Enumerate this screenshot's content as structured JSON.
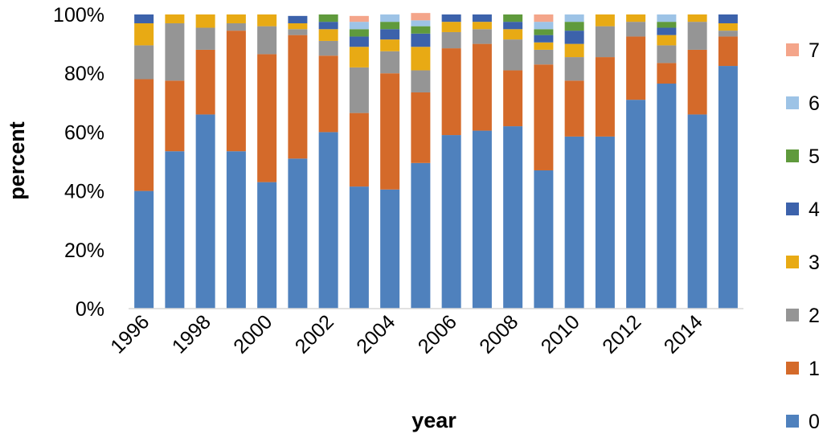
{
  "chart_data": {
    "type": "bar",
    "stacked": true,
    "title": "",
    "xlabel": "year",
    "ylabel": "percent",
    "ylim": [
      0,
      100
    ],
    "y_tick_labels": [
      "0%",
      "20%",
      "40%",
      "60%",
      "80%",
      "100%"
    ],
    "grid": false,
    "legend_position": "right",
    "categories": [
      "1996",
      "1997",
      "1998",
      "1999",
      "2000",
      "2001",
      "2002",
      "2003",
      "2004",
      "2005",
      "2006",
      "2007",
      "2008",
      "2009",
      "2010",
      "2011",
      "2012",
      "2013",
      "2014",
      "2015"
    ],
    "x_tick_labels": [
      "1996",
      "1998",
      "2000",
      "2002",
      "2004",
      "2006",
      "2008",
      "2010",
      "2012",
      "2014"
    ],
    "series": [
      {
        "name": "0",
        "color": "#4f81bd",
        "values": [
          40,
          53.5,
          66,
          53.5,
          43,
          51,
          60,
          41.5,
          40.5,
          49.5,
          59,
          60.5,
          62,
          47,
          58.5,
          58.5,
          71,
          76.5,
          66,
          82.5
        ]
      },
      {
        "name": "1",
        "color": "#d46a2a",
        "values": [
          38,
          24,
          22,
          41,
          43.5,
          42,
          26,
          25,
          39.5,
          24,
          29.5,
          29.5,
          19,
          36,
          19,
          27,
          21.5,
          7,
          22,
          10
        ]
      },
      {
        "name": "2",
        "color": "#959595",
        "values": [
          11.5,
          19.5,
          7.5,
          2.5,
          9.5,
          2,
          5,
          15.5,
          7.5,
          7.5,
          5.5,
          5,
          10.5,
          5,
          8,
          10.5,
          5,
          6,
          9.5,
          2
        ]
      },
      {
        "name": "3",
        "color": "#e8aa14",
        "values": [
          7.5,
          3,
          4.5,
          3,
          4,
          2,
          4,
          7,
          4,
          8,
          3.5,
          2.5,
          3.5,
          2.5,
          4.5,
          4,
          2.5,
          3.5,
          2.5,
          2.5
        ]
      },
      {
        "name": "4",
        "color": "#3c62ab",
        "values": [
          3,
          0,
          0,
          0,
          0,
          2.5,
          2.5,
          3.5,
          3.5,
          4.5,
          2.5,
          2.5,
          2.5,
          2.5,
          4.5,
          0,
          0,
          2.5,
          0,
          3
        ]
      },
      {
        "name": "5",
        "color": "#5f9a3c",
        "values": [
          0,
          0,
          0,
          0,
          0,
          0,
          2.5,
          2.5,
          2.5,
          2.5,
          0,
          0,
          2.5,
          2,
          3,
          0,
          0,
          2,
          0,
          0
        ]
      },
      {
        "name": "6",
        "color": "#9dc3e6",
        "values": [
          0,
          0,
          0,
          0,
          0,
          0,
          0,
          2.5,
          2.5,
          2,
          0,
          0,
          0,
          2.5,
          2.5,
          0,
          0,
          2.5,
          0,
          0
        ]
      },
      {
        "name": "7",
        "color": "#f4a58a",
        "values": [
          0,
          0,
          0,
          0,
          0,
          0,
          0,
          2,
          0,
          2.5,
          0,
          0,
          0,
          2.5,
          0,
          0,
          0,
          0,
          0,
          0
        ]
      }
    ]
  }
}
